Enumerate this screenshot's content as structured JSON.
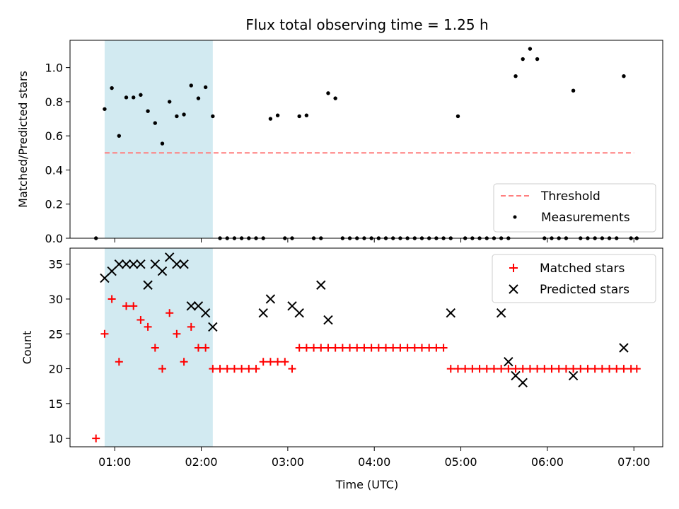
{
  "chart_data": [
    {
      "type": "scatter",
      "title": "Flux total observing time = 1.25 h",
      "ylabel": "Matched/Predicted stars",
      "xlabel": "",
      "xlim": [
        "00:29",
        "07:20"
      ],
      "ylim": [
        0,
        1.16
      ],
      "y_ticks": [
        "0.0",
        "0.2",
        "0.4",
        "0.6",
        "0.8",
        "1.0"
      ],
      "y_tick_values": [
        0,
        0.2,
        0.4,
        0.6,
        0.8,
        1.0
      ],
      "highlight_span": [
        "00:53",
        "02:08"
      ],
      "highlight_color": "#add8e6",
      "legend": {
        "placement": "lower-right",
        "entries": [
          "Threshold",
          "Measurements"
        ]
      },
      "threshold": {
        "name": "Threshold",
        "y": 0.5,
        "x_range": [
          "00:53",
          "07:00"
        ],
        "color": "#ff7f7f",
        "style": "dashed"
      },
      "series": [
        {
          "name": "Measurements",
          "marker": "dot",
          "color": "#000000",
          "x": [
            "00:47",
            "00:53",
            "00:58",
            "01:03",
            "01:08",
            "01:13",
            "01:18",
            "01:23",
            "01:28",
            "01:33",
            "01:38",
            "01:43",
            "01:48",
            "01:53",
            "01:58",
            "02:03",
            "02:08",
            "02:13",
            "02:18",
            "02:23",
            "02:28",
            "02:33",
            "02:38",
            "02:43",
            "02:48",
            "02:53",
            "02:58",
            "03:03",
            "03:08",
            "03:13",
            "03:18",
            "03:23",
            "03:28",
            "03:33",
            "03:38",
            "03:43",
            "03:48",
            "03:53",
            "03:58",
            "04:03",
            "04:08",
            "04:13",
            "04:18",
            "04:23",
            "04:28",
            "04:33",
            "04:38",
            "04:43",
            "04:48",
            "04:53",
            "04:58",
            "05:03",
            "05:08",
            "05:13",
            "05:18",
            "05:23",
            "05:28",
            "05:33",
            "05:38",
            "05:43",
            "05:48",
            "05:53",
            "05:58",
            "06:03",
            "06:08",
            "06:13",
            "06:18",
            "06:23",
            "06:28",
            "06:33",
            "06:38",
            "06:43",
            "06:48",
            "06:53",
            "06:58",
            "07:02"
          ],
          "values": [
            0,
            0.757,
            0.88,
            0.6,
            0.825,
            0.825,
            0.84,
            0.745,
            0.675,
            0.555,
            0.8,
            0.715,
            0.725,
            0.895,
            0.82,
            0.885,
            0.715,
            0,
            0,
            0,
            0,
            0,
            0,
            0,
            0.7,
            0.72,
            0,
            0,
            0.715,
            0.72,
            0,
            0,
            0.85,
            0.82,
            0,
            0,
            0,
            0,
            0,
            0,
            0,
            0,
            0,
            0,
            0,
            0,
            0,
            0,
            0,
            0,
            0.715,
            0,
            0,
            0,
            0,
            0,
            0,
            0,
            0.95,
            1.05,
            1.11,
            1.05,
            0,
            0,
            0,
            0,
            0.865,
            0,
            0,
            0,
            0,
            0,
            0,
            0.95,
            0,
            0
          ]
        }
      ]
    },
    {
      "type": "scatter",
      "title": "",
      "ylabel": "Count",
      "xlabel": "Time (UTC)",
      "xlim": [
        "00:29",
        "07:20"
      ],
      "ylim": [
        8.8,
        37.3
      ],
      "x_ticks": [
        "01:00",
        "02:00",
        "03:00",
        "04:00",
        "05:00",
        "06:00",
        "07:00"
      ],
      "y_ticks": [
        "10",
        "15",
        "20",
        "25",
        "30",
        "35"
      ],
      "y_tick_values": [
        10,
        15,
        20,
        25,
        30,
        35
      ],
      "highlight_span": [
        "00:53",
        "02:08"
      ],
      "highlight_color": "#add8e6",
      "legend": {
        "placement": "upper-right",
        "entries": [
          "Matched stars",
          "Predicted stars"
        ]
      },
      "series": [
        {
          "name": "Matched stars",
          "marker": "plus",
          "color": "#ff0000",
          "x": [
            "00:47",
            "00:53",
            "00:58",
            "01:03",
            "01:08",
            "01:13",
            "01:18",
            "01:23",
            "01:28",
            "01:33",
            "01:38",
            "01:43",
            "01:48",
            "01:53",
            "01:58",
            "02:03",
            "02:08",
            "02:13",
            "02:18",
            "02:23",
            "02:28",
            "02:33",
            "02:38",
            "02:43",
            "02:48",
            "02:53",
            "02:58",
            "03:03",
            "03:08",
            "03:13",
            "03:18",
            "03:23",
            "03:28",
            "03:33",
            "03:38",
            "03:43",
            "03:48",
            "03:53",
            "03:58",
            "04:03",
            "04:08",
            "04:13",
            "04:18",
            "04:23",
            "04:28",
            "04:33",
            "04:38",
            "04:43",
            "04:48",
            "04:53",
            "04:58",
            "05:03",
            "05:08",
            "05:13",
            "05:18",
            "05:23",
            "05:28",
            "05:33",
            "05:38",
            "05:43",
            "05:48",
            "05:53",
            "05:58",
            "06:03",
            "06:08",
            "06:13",
            "06:18",
            "06:23",
            "06:28",
            "06:33",
            "06:38",
            "06:43",
            "06:48",
            "06:53",
            "06:58",
            "07:02"
          ],
          "values": [
            10,
            25,
            30,
            21,
            29,
            29,
            27,
            26,
            23,
            20,
            28,
            25,
            21,
            26,
            23,
            23,
            20,
            20,
            20,
            20,
            20,
            20,
            20,
            21,
            21,
            21,
            21,
            20,
            23,
            23,
            23,
            23,
            23,
            23,
            23,
            23,
            23,
            23,
            23,
            23,
            23,
            23,
            23,
            23,
            23,
            23,
            23,
            23,
            23,
            20,
            20,
            20,
            20,
            20,
            20,
            20,
            20,
            20,
            20,
            20,
            20,
            20,
            20,
            20,
            20,
            20,
            20,
            20,
            20,
            20,
            20,
            20,
            20,
            20,
            20,
            20
          ]
        },
        {
          "name": "Predicted stars",
          "marker": "x",
          "color": "#000000",
          "x": [
            "00:53",
            "00:58",
            "01:03",
            "01:08",
            "01:13",
            "01:18",
            "01:23",
            "01:28",
            "01:33",
            "01:38",
            "01:43",
            "01:48",
            "01:53",
            "01:58",
            "02:03",
            "02:08",
            "02:43",
            "02:48",
            "03:03",
            "03:08",
            "03:23",
            "03:28",
            "04:53",
            "05:28",
            "05:33",
            "05:38",
            "05:43",
            "06:18",
            "06:53"
          ],
          "values": [
            33,
            34,
            35,
            35,
            35,
            35,
            32,
            35,
            34,
            36,
            35,
            35,
            29,
            29,
            28,
            26,
            28,
            30,
            29,
            28,
            32,
            27,
            28,
            28,
            21,
            19,
            18,
            19,
            23
          ]
        }
      ]
    }
  ]
}
